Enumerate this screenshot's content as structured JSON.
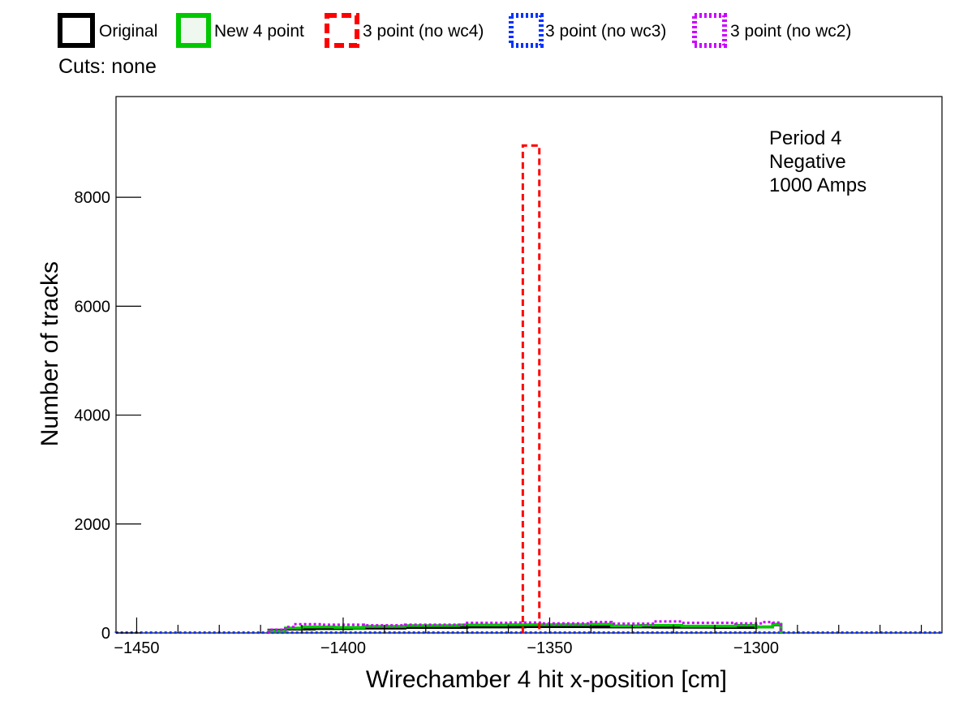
{
  "chart_data": {
    "type": "histogram",
    "title": "",
    "xlabel": "Wirechamber 4 hit x-position [cm]",
    "ylabel": "Number of tracks",
    "xlim": [
      -1455,
      -1255
    ],
    "ylim": [
      0,
      9850
    ],
    "xticks": [
      -1450,
      -1400,
      -1350,
      -1300
    ],
    "xtick_labels": [
      "−1450",
      "−1400",
      "−1350",
      "−1300"
    ],
    "yticks": [
      0,
      2000,
      4000,
      6000,
      8000
    ],
    "ytick_labels": [
      "0",
      "2000",
      "4000",
      "6000",
      "8000"
    ],
    "cuts_label": "Cuts: none",
    "annotation": [
      "Period 4",
      "Negative",
      "1000 Amps"
    ],
    "legend_position": "top",
    "series": [
      {
        "name": "Original",
        "color": "#000000",
        "style": "solid",
        "bins": [
          [
            -1418,
            -1414,
            50
          ],
          [
            -1414,
            -1407,
            70
          ],
          [
            -1407,
            -1398,
            80
          ],
          [
            -1398,
            -1385,
            90
          ],
          [
            -1385,
            -1370,
            100
          ],
          [
            -1370,
            -1356,
            110
          ],
          [
            -1356,
            -1340,
            115
          ],
          [
            -1340,
            -1325,
            110
          ],
          [
            -1325,
            -1310,
            105
          ],
          [
            -1310,
            -1300,
            100
          ],
          [
            -1300,
            -1296,
            110
          ],
          [
            -1296,
            -1294,
            150
          ]
        ]
      },
      {
        "name": "New 4 point",
        "color": "#00c800",
        "style": "solid",
        "bins": [
          [
            -1418,
            -1414,
            40
          ],
          [
            -1414,
            -1410,
            90
          ],
          [
            -1410,
            -1402,
            110
          ],
          [
            -1402,
            -1395,
            100
          ],
          [
            -1395,
            -1385,
            120
          ],
          [
            -1385,
            -1372,
            135
          ],
          [
            -1372,
            -1360,
            145
          ],
          [
            -1360,
            -1340,
            150
          ],
          [
            -1340,
            -1335,
            160
          ],
          [
            -1335,
            -1328,
            130
          ],
          [
            -1328,
            -1318,
            140
          ],
          [
            -1318,
            -1305,
            125
          ],
          [
            -1305,
            -1300,
            140
          ],
          [
            -1300,
            -1296,
            110
          ],
          [
            -1296,
            -1294,
            160
          ]
        ]
      },
      {
        "name": "3 point (no wc4)",
        "color": "#ff0000",
        "style": "dashed",
        "bins": [
          [
            -1356.5,
            -1352.5,
            8950
          ]
        ]
      },
      {
        "name": "3 point (no wc3)",
        "color": "#0033ff",
        "style": "dotted",
        "bins": [
          [
            -1455,
            -1255,
            5
          ]
        ]
      },
      {
        "name": "3 point (no wc2)",
        "color": "#cc00ff",
        "style": "dotted",
        "bins": [
          [
            -1418,
            -1414,
            60
          ],
          [
            -1414,
            -1412,
            110
          ],
          [
            -1412,
            -1405,
            160
          ],
          [
            -1405,
            -1395,
            150
          ],
          [
            -1395,
            -1385,
            140
          ],
          [
            -1385,
            -1370,
            150
          ],
          [
            -1370,
            -1360,
            185
          ],
          [
            -1360,
            -1352,
            190
          ],
          [
            -1352,
            -1340,
            175
          ],
          [
            -1340,
            -1335,
            200
          ],
          [
            -1335,
            -1325,
            170
          ],
          [
            -1325,
            -1318,
            210
          ],
          [
            -1318,
            -1305,
            185
          ],
          [
            -1305,
            -1298,
            175
          ],
          [
            -1298,
            -1296,
            200
          ],
          [
            -1296,
            -1294,
            190
          ]
        ]
      }
    ]
  }
}
